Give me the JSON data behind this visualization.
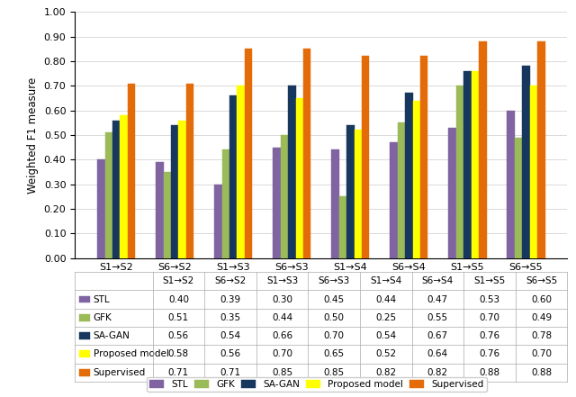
{
  "categories": [
    "S1→S2",
    "S6→S2",
    "S1→S3",
    "S6→S3",
    "S1→S4",
    "S6→S4",
    "S1→S5",
    "S6→S5"
  ],
  "series": {
    "STL": [
      0.4,
      0.39,
      0.3,
      0.45,
      0.44,
      0.47,
      0.53,
      0.6
    ],
    "GFK": [
      0.51,
      0.35,
      0.44,
      0.5,
      0.25,
      0.55,
      0.7,
      0.49
    ],
    "SA-GAN": [
      0.56,
      0.54,
      0.66,
      0.7,
      0.54,
      0.67,
      0.76,
      0.78
    ],
    "Proposed model": [
      0.58,
      0.56,
      0.7,
      0.65,
      0.52,
      0.64,
      0.76,
      0.7
    ],
    "Supervised": [
      0.71,
      0.71,
      0.85,
      0.85,
      0.82,
      0.82,
      0.88,
      0.88
    ]
  },
  "colors": {
    "STL": "#8064A2",
    "GFK": "#9BBB59",
    "SA-GAN": "#17375E",
    "Proposed model": "#FFFF00",
    "Supervised": "#E36C09"
  },
  "hatch_colors": {
    "STL": "#8064A2",
    "GFK": "#9BBB59",
    "SA-GAN": "#17375E",
    "Proposed model": "#FFFF00",
    "Supervised": "#E36C09"
  },
  "ylabel": "Weighted F1 measure",
  "ylim": [
    0.0,
    1.0
  ],
  "yticks": [
    0.0,
    0.1,
    0.2,
    0.3,
    0.4,
    0.5,
    0.6,
    0.7,
    0.8,
    0.9,
    1.0
  ],
  "bar_width": 0.13,
  "legend_labels": [
    "STL",
    "GFK",
    "SA-GAN",
    "Proposed model",
    "Supervised"
  ],
  "table_rows": {
    "STL": [
      0.4,
      0.39,
      0.3,
      0.45,
      0.44,
      0.47,
      0.53,
      0.6
    ],
    "GFK": [
      0.51,
      0.35,
      0.44,
      0.5,
      0.25,
      0.55,
      0.7,
      0.49
    ],
    "SA-GAN": [
      0.56,
      0.54,
      0.66,
      0.7,
      0.54,
      0.67,
      0.76,
      0.78
    ],
    "Proposed model": [
      0.58,
      0.56,
      0.7,
      0.65,
      0.52,
      0.64,
      0.76,
      0.7
    ],
    "Supervised": [
      0.71,
      0.71,
      0.85,
      0.85,
      0.82,
      0.82,
      0.88,
      0.88
    ]
  },
  "icon_colors": {
    "STL": "#8064A2",
    "GFK": "#9BBB59",
    "SA-GAN": "#17375E",
    "Proposed model": "#FFFF00",
    "Supervised": "#E36C09"
  }
}
